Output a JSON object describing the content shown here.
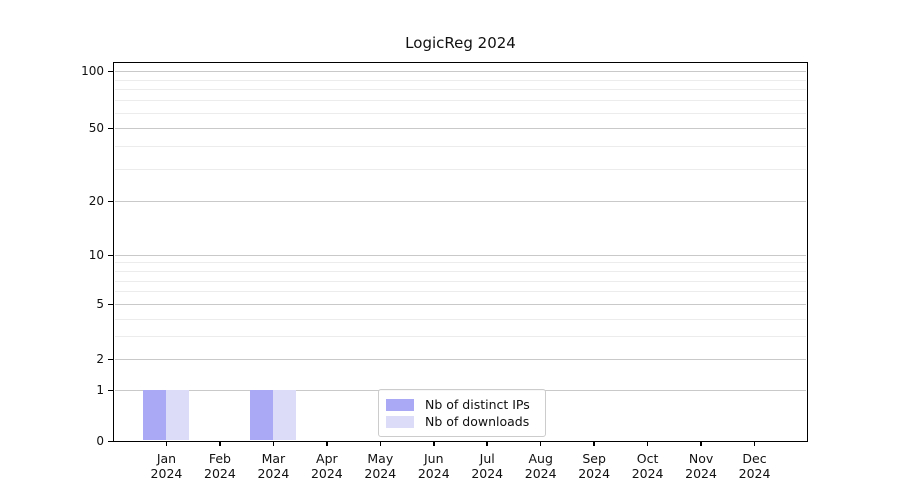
{
  "chart_data": {
    "type": "bar",
    "title": "LogicReg 2024",
    "year_label": "2024",
    "categories": [
      "Jan",
      "Feb",
      "Mar",
      "Apr",
      "May",
      "Jun",
      "Jul",
      "Aug",
      "Sep",
      "Oct",
      "Nov",
      "Dec"
    ],
    "series": [
      {
        "name": "Nb of distinct IPs",
        "color": "#a9a9f5",
        "values": [
          1,
          0,
          1,
          0,
          0,
          0,
          0,
          0,
          0,
          0,
          0,
          0
        ]
      },
      {
        "name": "Nb of downloads",
        "color": "#dcdcf9",
        "values": [
          1,
          0,
          1,
          0,
          0,
          0,
          0,
          0,
          0,
          0,
          0,
          0
        ]
      }
    ],
    "y_axis": {
      "major_ticks": [
        0,
        1,
        2,
        5,
        10,
        20,
        50,
        100
      ],
      "minor_gridlines": [
        3,
        4,
        6,
        7,
        8,
        9,
        30,
        40,
        60,
        70,
        80,
        90
      ],
      "scale": "log-offset",
      "scale_offset": 1.2,
      "ylim": [
        0,
        110
      ]
    },
    "legend": {
      "position": "lower center",
      "entries": [
        "Nb of distinct IPs",
        "Nb of downloads"
      ]
    },
    "grid": true,
    "colors": {
      "major_grid": "#c9c9c9",
      "minor_grid": "#ececec",
      "axis": "#000000",
      "background": "#ffffff"
    }
  }
}
